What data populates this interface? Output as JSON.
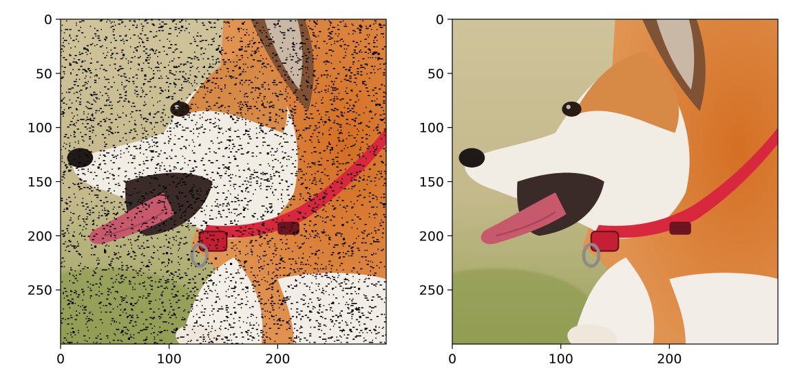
{
  "chart_data": [
    {
      "type": "image",
      "image": "noisy-corgi",
      "xlim": [
        0,
        300
      ],
      "ylim": [
        300,
        0
      ],
      "xticks": [
        0,
        100,
        200
      ],
      "yticks": [
        0,
        50,
        100,
        150,
        200,
        250
      ],
      "noise": "salt-and-pepper"
    },
    {
      "type": "image",
      "image": "denoised-corgi",
      "xlim": [
        0,
        300
      ],
      "ylim": [
        300,
        0
      ],
      "xticks": [
        0,
        100,
        200
      ],
      "yticks": [
        0,
        50,
        100,
        150,
        200,
        250
      ],
      "noise": "none"
    }
  ],
  "colors": {
    "grass": "#b9b47a",
    "fur_orange": "#d27a35",
    "fur_white": "#f1ece4",
    "collar": "#d8283e",
    "tongue": "#c7596d"
  }
}
